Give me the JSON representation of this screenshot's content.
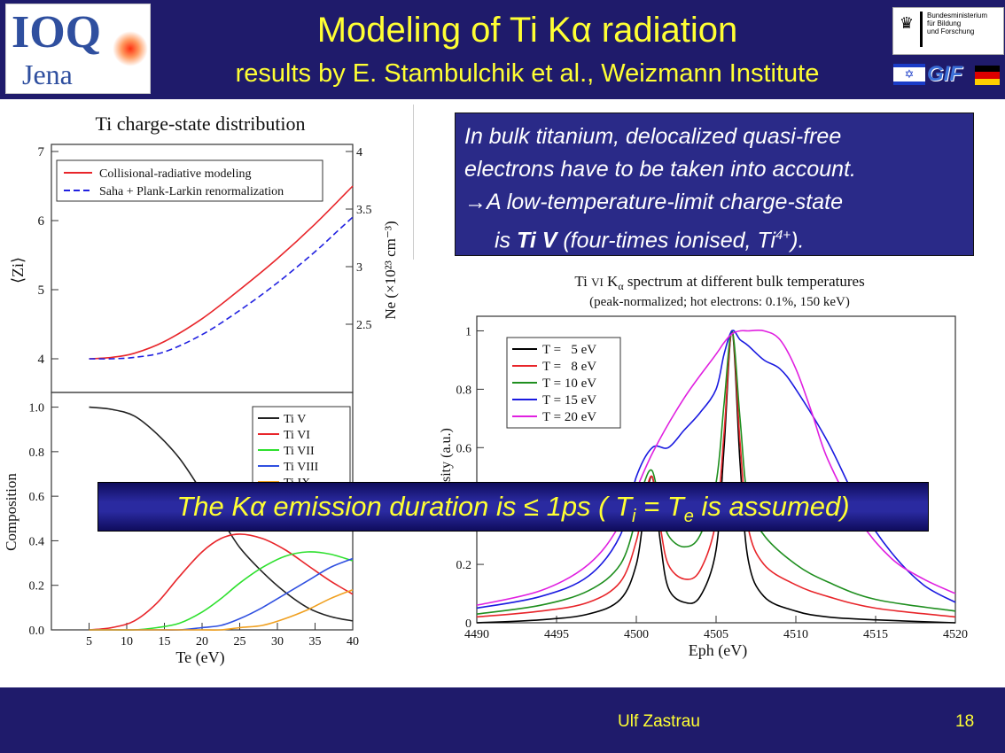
{
  "slide": {
    "title_pre": "Modeling of Ti K",
    "title_greek": "α",
    "title_post": " radiation",
    "subtitle": "results by E. Stambulchik et al., Weizmann Institute",
    "logo_ioq_line1": "IOQ",
    "logo_ioq_line2": "Jena",
    "logo_bmbf": [
      "Bundesministerium",
      "für Bildung",
      "und Forschung"
    ],
    "logo_gif": "GIF",
    "info_lines": [
      "In bulk titanium, delocalized quasi-free",
      "electrons have to be taken into account.",
      "A low-temperature-limit charge-state"
    ],
    "info_arrow": "→",
    "info_line4_pre": "is ",
    "info_line4_bold": "Ti V",
    "info_line4_mid": " (four-times ionised, Ti",
    "info_line4_sup": "4+",
    "info_line4_post": ").",
    "banner_pre": "The K",
    "banner_greek": "α",
    "banner_mid": " emission duration is ≤ 1ps ( T",
    "banner_sub_i": "i",
    "banner_eq": " = T",
    "banner_sub_e": "e",
    "banner_post": " is assumed)",
    "footer_name": "Ulf Zastrau",
    "footer_page": "18",
    "colors": {
      "bg": "#1f1b6b",
      "title": "#ffff33",
      "box": "#2a2a88"
    }
  },
  "chart_data": [
    {
      "type": "line",
      "title": "Ti charge-state distribution",
      "xlim": [
        0,
        40
      ],
      "ylim": [
        4,
        7
      ],
      "y2lim": [
        2,
        4
      ],
      "y_ticks": [
        "4",
        "5",
        "6",
        "7"
      ],
      "y2_ticks": [
        "2.5",
        "3",
        "3.5",
        "4"
      ],
      "ylabel": "⟨Zi⟩",
      "y2label": "Ne (×10²³ cm⁻³)",
      "legend": "top-left",
      "series": [
        {
          "name": "Collisional-radiative modeling",
          "color": "#e8252a",
          "dash": false,
          "x": [
            5,
            8,
            11,
            15,
            20,
            25,
            30,
            35,
            40
          ],
          "y": [
            4.0,
            4.02,
            4.08,
            4.25,
            4.58,
            5.0,
            5.45,
            5.95,
            6.5
          ]
        },
        {
          "name": "Saha + Plank-Larkin renormalization",
          "color": "#2020e0",
          "dash": true,
          "x": [
            5,
            8,
            11,
            15,
            20,
            25,
            30,
            35,
            38,
            40
          ],
          "y": [
            4.0,
            4.0,
            4.02,
            4.1,
            4.35,
            4.7,
            5.1,
            5.55,
            5.85,
            6.05
          ]
        }
      ]
    },
    {
      "type": "line",
      "xlabel": "Te (eV)",
      "ylabel": "Composition",
      "xlim": [
        0,
        40
      ],
      "ylim": [
        0,
        1.05
      ],
      "x_ticks": [
        "5",
        "10",
        "15",
        "20",
        "25",
        "30",
        "35",
        "40"
      ],
      "y_ticks": [
        "0.0",
        "0.2",
        "0.4",
        "0.6",
        "0.8",
        "1.0"
      ],
      "legend": "top-right",
      "legend_last": "Ti IX",
      "series": [
        {
          "name": "Ti V",
          "color": "#222222",
          "x": [
            5,
            8,
            11,
            14,
            17,
            20,
            22.5,
            25,
            28,
            31,
            34,
            37,
            40
          ],
          "y": [
            1.0,
            0.99,
            0.96,
            0.88,
            0.77,
            0.62,
            0.5,
            0.37,
            0.26,
            0.17,
            0.1,
            0.06,
            0.04
          ]
        },
        {
          "name": "Ti VI",
          "color": "#e8252a",
          "x": [
            5,
            8,
            11,
            14,
            17,
            20,
            22.5,
            25,
            28,
            31,
            34,
            37,
            40
          ],
          "y": [
            0.0,
            0.01,
            0.04,
            0.12,
            0.24,
            0.35,
            0.41,
            0.43,
            0.41,
            0.36,
            0.29,
            0.22,
            0.16
          ]
        },
        {
          "name": "Ti VII",
          "color": "#2ee02e",
          "x": [
            5,
            8,
            11,
            14,
            17,
            20,
            22.5,
            25,
            28,
            31,
            34,
            37,
            40
          ],
          "y": [
            0.0,
            0.0,
            0.0,
            0.01,
            0.03,
            0.08,
            0.14,
            0.21,
            0.28,
            0.33,
            0.35,
            0.34,
            0.31
          ]
        },
        {
          "name": "Ti VIII",
          "color": "#3050e0",
          "x": [
            5,
            8,
            11,
            14,
            17,
            20,
            22.5,
            25,
            28,
            31,
            34,
            37,
            40
          ],
          "y": [
            0.0,
            0.0,
            0.0,
            0.0,
            0.0,
            0.01,
            0.02,
            0.05,
            0.1,
            0.16,
            0.22,
            0.28,
            0.32
          ]
        },
        {
          "name": "Ti IX",
          "color": "#f0a020",
          "x": [
            5,
            8,
            11,
            14,
            17,
            20,
            22.5,
            25,
            28,
            31,
            34,
            37,
            40
          ],
          "y": [
            0.0,
            0.0,
            0.0,
            0.0,
            0.0,
            0.0,
            0.0,
            0.01,
            0.02,
            0.05,
            0.09,
            0.14,
            0.18
          ]
        }
      ]
    },
    {
      "type": "line",
      "title_pre": "Ti ",
      "title_roman": "VI",
      "title_k": " K",
      "title_alpha": "α",
      "title_post": " spectrum at different bulk temperatures",
      "subtitle": "(peak-normalized; hot electrons: 0.1%, 150 keV)",
      "xlabel": "Eph (eV)",
      "ylabel": "Intensity (a.u.)",
      "xlim": [
        4490,
        4520
      ],
      "ylim": [
        0,
        1.05
      ],
      "x_ticks": [
        "4490",
        "4495",
        "4500",
        "4505",
        "4510",
        "4515",
        "4520"
      ],
      "y_ticks": [
        "0",
        "0.2",
        "0.4",
        "0.6",
        "0.8",
        "1"
      ],
      "legend": "top-left",
      "series": [
        {
          "name": "T =   5 eV",
          "color": "#000000",
          "x": [
            4490,
            4494,
            4497,
            4499,
            4500,
            4500.5,
            4501,
            4501.5,
            4502,
            4503,
            4504,
            4505,
            4505.5,
            4506,
            4506.5,
            4507,
            4508,
            4510,
            4512,
            4515,
            4520
          ],
          "y": [
            0.0,
            0.01,
            0.03,
            0.08,
            0.2,
            0.38,
            0.5,
            0.28,
            0.12,
            0.07,
            0.09,
            0.25,
            0.6,
            1.0,
            0.55,
            0.22,
            0.09,
            0.04,
            0.02,
            0.01,
            0.0
          ]
        },
        {
          "name": "T =   8 eV",
          "color": "#e8252a",
          "x": [
            4490,
            4494,
            4497,
            4499,
            4500,
            4500.5,
            4501,
            4501.5,
            4502,
            4503,
            4504,
            4505,
            4505.5,
            4506,
            4506.5,
            4507,
            4508,
            4510,
            4512,
            4515,
            4520
          ],
          "y": [
            0.02,
            0.04,
            0.07,
            0.14,
            0.28,
            0.42,
            0.5,
            0.33,
            0.2,
            0.15,
            0.18,
            0.35,
            0.65,
            1.0,
            0.62,
            0.33,
            0.2,
            0.13,
            0.09,
            0.05,
            0.02
          ]
        },
        {
          "name": "T = 10 eV",
          "color": "#1f8f1f",
          "x": [
            4490,
            4494,
            4497,
            4499,
            4500,
            4500.5,
            4501,
            4501.5,
            4502,
            4503,
            4504,
            4505,
            4505.5,
            4506,
            4506.5,
            4507,
            4508,
            4510,
            4512,
            4515,
            4520
          ],
          "y": [
            0.03,
            0.06,
            0.11,
            0.2,
            0.36,
            0.48,
            0.52,
            0.4,
            0.3,
            0.26,
            0.3,
            0.48,
            0.75,
            1.0,
            0.7,
            0.42,
            0.3,
            0.2,
            0.14,
            0.08,
            0.04
          ]
        },
        {
          "name": "T = 15 eV",
          "color": "#1a1ae0",
          "x": [
            4490,
            4494,
            4497,
            4499,
            4500,
            4501,
            4502,
            4503,
            4504,
            4505,
            4505.5,
            4506,
            4506.5,
            4507,
            4508,
            4509,
            4510,
            4512,
            4514,
            4516,
            4518,
            4520
          ],
          "y": [
            0.05,
            0.09,
            0.16,
            0.3,
            0.5,
            0.6,
            0.6,
            0.66,
            0.72,
            0.8,
            0.92,
            1.0,
            0.97,
            0.95,
            0.9,
            0.87,
            0.8,
            0.62,
            0.4,
            0.24,
            0.13,
            0.07
          ]
        },
        {
          "name": "T = 20 eV",
          "color": "#e020e0",
          "x": [
            4490,
            4494,
            4497,
            4499,
            4501,
            4503,
            4505,
            4505.5,
            4506,
            4506.5,
            4507,
            4508,
            4509,
            4510,
            4511,
            4512,
            4514,
            4516,
            4518,
            4520
          ],
          "y": [
            0.06,
            0.11,
            0.2,
            0.34,
            0.58,
            0.77,
            0.92,
            0.96,
            0.99,
            1.0,
            1.0,
            1.0,
            0.97,
            0.87,
            0.72,
            0.56,
            0.35,
            0.22,
            0.15,
            0.1
          ]
        }
      ]
    }
  ]
}
